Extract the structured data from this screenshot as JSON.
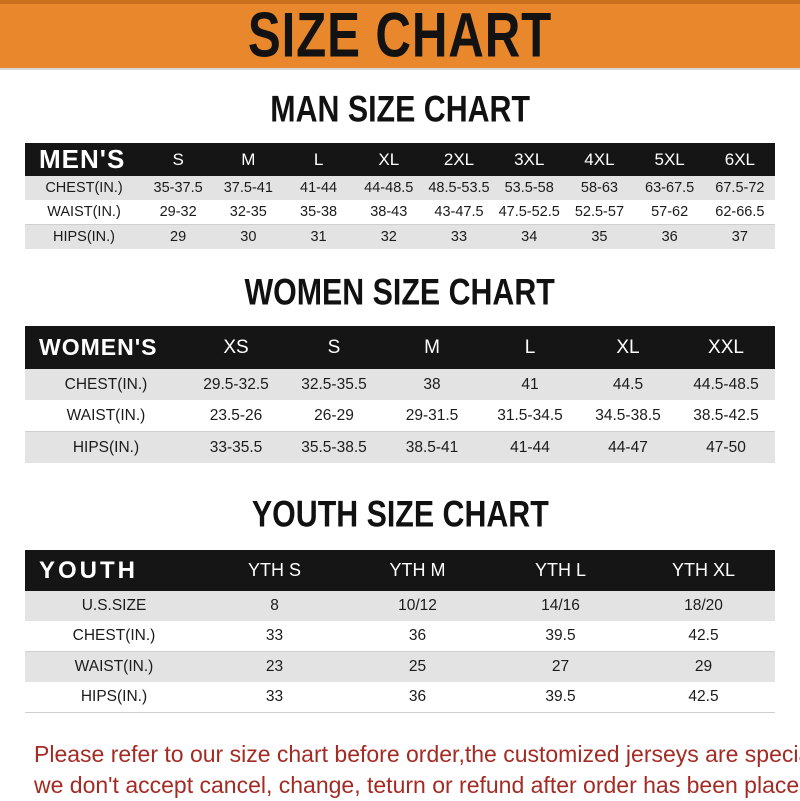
{
  "banner": {
    "title": "SIZE CHART"
  },
  "sections": [
    {
      "heading": "MAN SIZE CHART",
      "table": {
        "label": "MEN'S",
        "columns": [
          "S",
          "M",
          "L",
          "XL",
          "2XL",
          "3XL",
          "4XL",
          "5XL",
          "6XL"
        ],
        "rows": [
          {
            "label": "CHEST(IN.)",
            "values": [
              "35-37.5",
              "37.5-41",
              "41-44",
              "44-48.5",
              "48.5-53.5",
              "53.5-58",
              "58-63",
              "63-67.5",
              "67.5-72"
            ]
          },
          {
            "label": "WAIST(IN.)",
            "values": [
              "29-32",
              "32-35",
              "35-38",
              "38-43",
              "43-47.5",
              "47.5-52.5",
              "52.5-57",
              "57-62",
              "62-66.5"
            ]
          },
          {
            "label": "HIPS(IN.)",
            "values": [
              "29",
              "30",
              "31",
              "32",
              "33",
              "34",
              "35",
              "36",
              "37"
            ]
          }
        ]
      }
    },
    {
      "heading": "WOMEN SIZE CHART",
      "table": {
        "label": "WOMEN'S",
        "columns": [
          "XS",
          "S",
          "M",
          "L",
          "XL",
          "XXL"
        ],
        "rows": [
          {
            "label": "CHEST(IN.)",
            "values": [
              "29.5-32.5",
              "32.5-35.5",
              "38",
              "41",
              "44.5",
              "44.5-48.5"
            ]
          },
          {
            "label": "WAIST(IN.)",
            "values": [
              "23.5-26",
              "26-29",
              "29-31.5",
              "31.5-34.5",
              "34.5-38.5",
              "38.5-42.5"
            ]
          },
          {
            "label": "HIPS(IN.)",
            "values": [
              "33-35.5",
              "35.5-38.5",
              "38.5-41",
              "41-44",
              "44-47",
              "47-50"
            ]
          }
        ]
      }
    },
    {
      "heading": "YOUTH SIZE CHART",
      "table": {
        "label": "YOUTH",
        "columns": [
          "YTH S",
          "YTH M",
          "YTH L",
          "YTH XL"
        ],
        "rows": [
          {
            "label": "U.S.SIZE",
            "values": [
              "8",
              "10/12",
              "14/16",
              "18/20"
            ]
          },
          {
            "label": "CHEST(IN.)",
            "values": [
              "33",
              "36",
              "39.5",
              "42.5"
            ]
          },
          {
            "label": "WAIST(IN.)",
            "values": [
              "23",
              "25",
              "27",
              "29"
            ]
          },
          {
            "label": "HIPS(IN.)",
            "values": [
              "33",
              "36",
              "39.5",
              "42.5"
            ]
          }
        ]
      }
    }
  ],
  "footer": {
    "line1": "Please refer to our size chart before order,the customized jerseys are special products,",
    "line2": "we don't accept cancel, change, teturn or refund after order has been placed!"
  },
  "colors": {
    "banner_orange": "#E8872C",
    "banner_orange_dark": "#C96F1E",
    "header_bar_black": "#151515",
    "row_stripe_gray": "#E3E3E3",
    "footer_red": "#A42B24"
  }
}
